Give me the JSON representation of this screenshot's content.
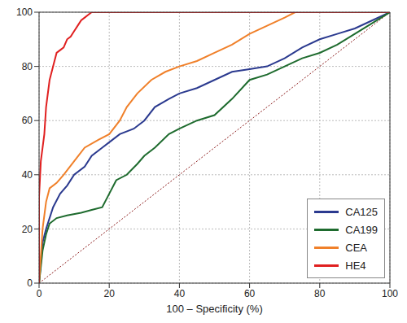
{
  "chart_data": {
    "type": "line",
    "xlabel": "100 – Specificity (%)",
    "xlim": [
      0,
      100
    ],
    "ylim": [
      0,
      100
    ],
    "xticks": [
      0,
      20,
      40,
      60,
      80,
      100
    ],
    "yticks": [
      0,
      20,
      40,
      60,
      80,
      100
    ],
    "grid": true,
    "legend": "lower right",
    "series": [
      {
        "name": "CA125",
        "color": "#2b3a8f",
        "x": [
          0,
          1,
          2,
          4,
          6,
          8,
          10,
          13,
          15,
          18,
          20,
          23,
          27,
          30,
          33,
          37,
          40,
          45,
          50,
          55,
          60,
          65,
          70,
          75,
          80,
          85,
          90,
          95,
          100
        ],
        "values": [
          0,
          15,
          20,
          28,
          33,
          36,
          40,
          43,
          47,
          50,
          52,
          55,
          57,
          60,
          65,
          68,
          70,
          72,
          75,
          78,
          79,
          80,
          83,
          87,
          90,
          92,
          94,
          97,
          100
        ]
      },
      {
        "name": "CA199",
        "color": "#1e6b2e",
        "x": [
          0,
          1,
          2,
          3,
          5,
          8,
          12,
          15,
          18,
          20,
          22,
          25,
          28,
          30,
          33,
          37,
          40,
          45,
          50,
          55,
          60,
          65,
          70,
          75,
          80,
          85,
          90,
          95,
          100
        ],
        "values": [
          0,
          12,
          18,
          22,
          24,
          25,
          26,
          27,
          28,
          33,
          38,
          40,
          44,
          47,
          50,
          55,
          57,
          60,
          62,
          68,
          75,
          77,
          80,
          83,
          85,
          88,
          92,
          96,
          100
        ]
      },
      {
        "name": "CEA",
        "color": "#f0802a",
        "x": [
          0,
          1,
          2,
          3,
          5,
          7,
          10,
          13,
          17,
          20,
          23,
          25,
          28,
          32,
          36,
          40,
          45,
          50,
          55,
          60,
          65,
          70,
          73,
          100
        ],
        "values": [
          0,
          20,
          30,
          35,
          37,
          40,
          45,
          50,
          53,
          55,
          60,
          65,
          70,
          75,
          78,
          80,
          82,
          85,
          88,
          92,
          95,
          98,
          100,
          100
        ]
      },
      {
        "name": "HE4",
        "color": "#e02020",
        "x": [
          0,
          0,
          0,
          0.5,
          1,
          1.5,
          2,
          3,
          4,
          5,
          6,
          7,
          8,
          9,
          10,
          11,
          12,
          13,
          14,
          15,
          100
        ],
        "values": [
          0,
          20,
          32,
          45,
          50,
          55,
          65,
          75,
          80,
          85,
          86,
          87,
          90,
          91,
          93,
          95,
          97,
          98,
          99,
          100,
          100
        ]
      }
    ]
  }
}
